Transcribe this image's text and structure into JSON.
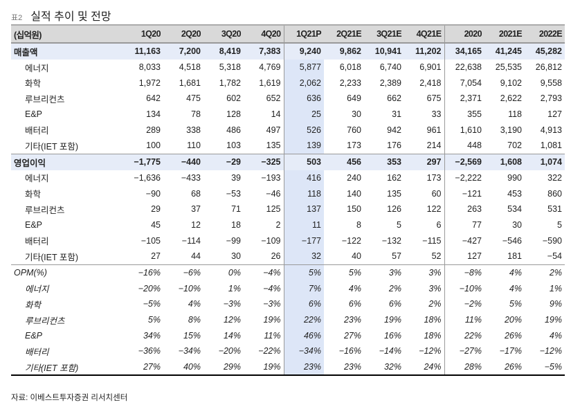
{
  "title": {
    "number": "표2",
    "text": "실적 추이 및 전망"
  },
  "table": {
    "unit": "(십억원)",
    "columns": [
      "1Q20",
      "2Q20",
      "3Q20",
      "4Q20",
      "1Q21P",
      "2Q21E",
      "3Q21E",
      "4Q21E",
      "2020",
      "2021E",
      "2022E"
    ],
    "sections": [
      {
        "rows": [
          {
            "label": "매출액",
            "main": true,
            "values": [
              "11,163",
              "7,200",
              "8,419",
              "7,383",
              "9,240",
              "9,862",
              "10,941",
              "11,202",
              "34,165",
              "41,245",
              "45,282"
            ]
          },
          {
            "label": "에너지",
            "values": [
              "8,033",
              "4,518",
              "5,318",
              "4,769",
              "5,877",
              "6,018",
              "6,740",
              "6,901",
              "22,638",
              "25,535",
              "26,812"
            ]
          },
          {
            "label": "화학",
            "values": [
              "1,972",
              "1,681",
              "1,782",
              "1,619",
              "2,062",
              "2,233",
              "2,389",
              "2,418",
              "7,054",
              "9,102",
              "9,558"
            ]
          },
          {
            "label": "루브리컨츠",
            "values": [
              "642",
              "475",
              "602",
              "652",
              "636",
              "649",
              "662",
              "675",
              "2,371",
              "2,622",
              "2,793"
            ]
          },
          {
            "label": "E&P",
            "values": [
              "134",
              "78",
              "128",
              "14",
              "25",
              "30",
              "31",
              "33",
              "355",
              "118",
              "127"
            ]
          },
          {
            "label": "배터리",
            "values": [
              "289",
              "338",
              "486",
              "497",
              "526",
              "760",
              "942",
              "961",
              "1,610",
              "3,190",
              "4,913"
            ]
          },
          {
            "label": "기타(IET 포함)",
            "values": [
              "100",
              "110",
              "103",
              "135",
              "139",
              "173",
              "176",
              "214",
              "448",
              "702",
              "1,081"
            ]
          }
        ]
      },
      {
        "rows": [
          {
            "label": "영업이익",
            "main": true,
            "values": [
              "−1,775",
              "−440",
              "−29",
              "−325",
              "503",
              "456",
              "353",
              "297",
              "−2,569",
              "1,608",
              "1,074"
            ]
          },
          {
            "label": "에너지",
            "values": [
              "−1,636",
              "−433",
              "39",
              "−193",
              "416",
              "240",
              "162",
              "173",
              "−2,222",
              "990",
              "322"
            ]
          },
          {
            "label": "화학",
            "values": [
              "−90",
              "68",
              "−53",
              "−46",
              "118",
              "140",
              "135",
              "60",
              "−121",
              "453",
              "860"
            ]
          },
          {
            "label": "루브리컨츠",
            "values": [
              "29",
              "37",
              "71",
              "125",
              "137",
              "150",
              "126",
              "122",
              "263",
              "534",
              "531"
            ]
          },
          {
            "label": "E&P",
            "values": [
              "45",
              "12",
              "18",
              "2",
              "11",
              "8",
              "5",
              "6",
              "77",
              "30",
              "5"
            ]
          },
          {
            "label": "배터리",
            "values": [
              "−105",
              "−114",
              "−99",
              "−109",
              "−177",
              "−122",
              "−132",
              "−115",
              "−427",
              "−546",
              "−590"
            ]
          },
          {
            "label": "기타(IET 포함)",
            "values": [
              "27",
              "44",
              "30",
              "26",
              "32",
              "40",
              "57",
              "52",
              "127",
              "181",
              "−54"
            ]
          }
        ]
      },
      {
        "pct": true,
        "rows": [
          {
            "label": "OPM(%)",
            "top": true,
            "values": [
              "−16%",
              "−6%",
              "0%",
              "−4%",
              "5%",
              "5%",
              "3%",
              "3%",
              "−8%",
              "4%",
              "2%"
            ]
          },
          {
            "label": "에너지",
            "values": [
              "−20%",
              "−10%",
              "1%",
              "−4%",
              "7%",
              "4%",
              "2%",
              "3%",
              "−10%",
              "4%",
              "1%"
            ]
          },
          {
            "label": "화학",
            "values": [
              "−5%",
              "4%",
              "−3%",
              "−3%",
              "6%",
              "6%",
              "6%",
              "2%",
              "−2%",
              "5%",
              "9%"
            ]
          },
          {
            "label": "루브리컨츠",
            "values": [
              "5%",
              "8%",
              "12%",
              "19%",
              "22%",
              "23%",
              "19%",
              "18%",
              "11%",
              "20%",
              "19%"
            ]
          },
          {
            "label": "E&P",
            "values": [
              "34%",
              "15%",
              "14%",
              "11%",
              "46%",
              "27%",
              "16%",
              "18%",
              "22%",
              "26%",
              "4%"
            ]
          },
          {
            "label": "배터리",
            "values": [
              "−36%",
              "−34%",
              "−20%",
              "−22%",
              "−34%",
              "−16%",
              "−14%",
              "−12%",
              "−27%",
              "−17%",
              "−12%"
            ]
          },
          {
            "label": "기타(IET 포함)",
            "values": [
              "27%",
              "40%",
              "29%",
              "19%",
              "23%",
              "23%",
              "32%",
              "24%",
              "28%",
              "26%",
              "−5%"
            ]
          }
        ]
      }
    ]
  },
  "source": "자료: 이베스트투자증권 리서치센터"
}
